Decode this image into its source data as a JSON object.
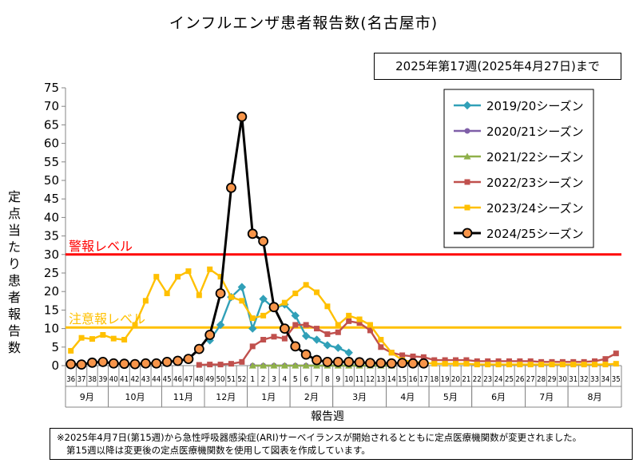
{
  "header": {
    "title": "インフルエンザ患者報告数(名古屋市)",
    "period": "2025年第17週(2025年4月27日)まで"
  },
  "footnote": {
    "line1": "※2025年4月7日(第15週)から急性呼吸器感染症(ARI)サーベイランスが開始されるとともに定点医療機関数が変更されました。",
    "line2": "第15週以降は変更後の定点医療機関数を使用して図表を作成しています。"
  },
  "colors": {
    "warning": "#ff0000",
    "caution": "#ffc000",
    "s2019": "#31a0b8",
    "s2020": "#7f5fa8",
    "s2021": "#8fb04a",
    "s2022": "#c0504d",
    "s2023": "#ffc000",
    "s2024": "#000000",
    "s2024_marker": "#f7954a"
  },
  "chart_data": {
    "type": "line",
    "ylabel": "定点当たり患者報告数",
    "xlabel": "報告週",
    "ylim": [
      0,
      75
    ],
    "yticks": [
      0,
      5,
      10,
      15,
      20,
      25,
      30,
      35,
      40,
      45,
      50,
      55,
      60,
      65,
      70,
      75
    ],
    "grid": false,
    "legend_position": "top-right",
    "categories": [
      "36",
      "37",
      "38",
      "39",
      "40",
      "41",
      "42",
      "43",
      "44",
      "45",
      "46",
      "47",
      "48",
      "49",
      "50",
      "51",
      "52",
      "1",
      "2",
      "3",
      "4",
      "5",
      "6",
      "7",
      "8",
      "9",
      "10",
      "11",
      "12",
      "13",
      "14",
      "15",
      "16",
      "17",
      "18",
      "19",
      "20",
      "21",
      "22",
      "23",
      "24",
      "25",
      "26",
      "27",
      "28",
      "29",
      "30",
      "31",
      "32",
      "33",
      "34",
      "35"
    ],
    "months": [
      {
        "label": "9月",
        "start": 0,
        "end": 4
      },
      {
        "label": "10月",
        "start": 4,
        "end": 9
      },
      {
        "label": "11月",
        "start": 9,
        "end": 13
      },
      {
        "label": "12月",
        "start": 13,
        "end": 17
      },
      {
        "label": "1月",
        "start": 17,
        "end": 21
      },
      {
        "label": "2月",
        "start": 21,
        "end": 25
      },
      {
        "label": "3月",
        "start": 25,
        "end": 30
      },
      {
        "label": "4月",
        "start": 30,
        "end": 34
      },
      {
        "label": "5月",
        "start": 34,
        "end": 38
      },
      {
        "label": "6月",
        "start": 38,
        "end": 43
      },
      {
        "label": "7月",
        "start": 43,
        "end": 47
      },
      {
        "label": "8月",
        "start": 47,
        "end": 52
      }
    ],
    "thresholds": [
      {
        "label": "警報レベル",
        "value": 30,
        "color_key": "warning"
      },
      {
        "label": "注意報レベル",
        "value": 10.3,
        "color_key": "caution"
      }
    ],
    "series": [
      {
        "name": "2019/20シーズン",
        "color_key": "s2019",
        "marker": "diamond",
        "values": [
          null,
          null,
          null,
          null,
          null,
          null,
          null,
          null,
          null,
          null,
          null,
          null,
          null,
          6.8,
          11.0,
          18.5,
          21.2,
          10.0,
          18.0,
          15.5,
          16.5,
          13.5,
          8.0,
          7.0,
          5.5,
          4.8,
          3.5,
          null,
          null,
          null,
          null,
          null,
          null,
          null,
          null,
          null,
          null,
          null,
          null,
          null,
          null,
          null,
          null,
          null,
          null,
          null,
          null,
          null,
          null,
          null,
          null,
          null
        ]
      },
      {
        "name": "2020/21シーズン",
        "color_key": "s2020",
        "marker": "circle",
        "values": [
          null,
          null,
          null,
          null,
          null,
          null,
          null,
          null,
          null,
          null,
          null,
          null,
          null,
          null,
          null,
          null,
          null,
          0,
          0,
          0,
          0,
          0,
          0,
          0,
          0,
          0,
          0,
          0,
          0,
          0,
          0,
          null,
          null,
          null,
          null,
          null,
          null,
          null,
          null,
          null,
          null,
          null,
          null,
          null,
          null,
          null,
          null,
          null,
          null,
          null,
          null,
          null
        ]
      },
      {
        "name": "2021/22シーズン",
        "color_key": "s2021",
        "marker": "triangle",
        "values": [
          null,
          null,
          null,
          null,
          null,
          null,
          null,
          null,
          null,
          null,
          null,
          null,
          null,
          null,
          null,
          null,
          null,
          0,
          0,
          0,
          0,
          0,
          0,
          0,
          0,
          0,
          0,
          0,
          0,
          0,
          0,
          null,
          null,
          null,
          null,
          null,
          null,
          null,
          null,
          null,
          null,
          null,
          null,
          null,
          null,
          null,
          null,
          null,
          null,
          null,
          null,
          null
        ]
      },
      {
        "name": "2022/23シーズン",
        "color_key": "s2022",
        "marker": "square",
        "values": [
          null,
          null,
          null,
          null,
          null,
          null,
          null,
          null,
          null,
          null,
          null,
          null,
          0.2,
          0.3,
          0.3,
          0.5,
          1.0,
          5.2,
          7.0,
          7.8,
          7.3,
          11.0,
          11.0,
          10.0,
          8.5,
          9.0,
          12.0,
          11.5,
          9.5,
          5.0,
          3.5,
          2.8,
          2.5,
          2.3,
          1.5,
          1.5,
          1.5,
          1.5,
          1.2,
          1.2,
          1.2,
          1.2,
          1.2,
          1.2,
          1.0,
          1.0,
          1.0,
          1.0,
          1.0,
          1.2,
          1.8,
          3.3
        ]
      },
      {
        "name": "2023/24シーズン",
        "color_key": "s2023",
        "marker": "square",
        "values": [
          4.0,
          7.5,
          7.2,
          8.3,
          7.3,
          7.0,
          11.0,
          17.5,
          24.0,
          19.5,
          24.0,
          25.5,
          19.0,
          26.0,
          24.0,
          18.5,
          17.5,
          12.8,
          13.5,
          15.5,
          17.0,
          19.5,
          21.8,
          19.8,
          16.0,
          11.0,
          13.5,
          12.5,
          11.0,
          7.0,
          3.5,
          1.5,
          1.0,
          0.8,
          0.5,
          0.5,
          0.5,
          0.5,
          0.3,
          0.3,
          0.3,
          0.3,
          0.3,
          0.3,
          0.3,
          0.3,
          0.3,
          0.3,
          0.3,
          0.3,
          0.3,
          0.5
        ]
      },
      {
        "name": "2024/25シーズン",
        "color_key": "s2024",
        "marker": "circle-large",
        "values": [
          0.4,
          0.3,
          0.8,
          1.0,
          0.6,
          0.5,
          0.4,
          0.6,
          0.6,
          1.0,
          1.3,
          1.8,
          4.5,
          8.3,
          19.5,
          48.0,
          67.2,
          35.6,
          33.6,
          15.8,
          10.0,
          5.2,
          3.0,
          1.5,
          1.0,
          1.0,
          1.0,
          0.9,
          0.7,
          0.7,
          0.6,
          0.7,
          0.6,
          0.6,
          null,
          null,
          null,
          null,
          null,
          null,
          null,
          null,
          null,
          null,
          null,
          null,
          null,
          null,
          null,
          null,
          null,
          null
        ]
      }
    ]
  }
}
